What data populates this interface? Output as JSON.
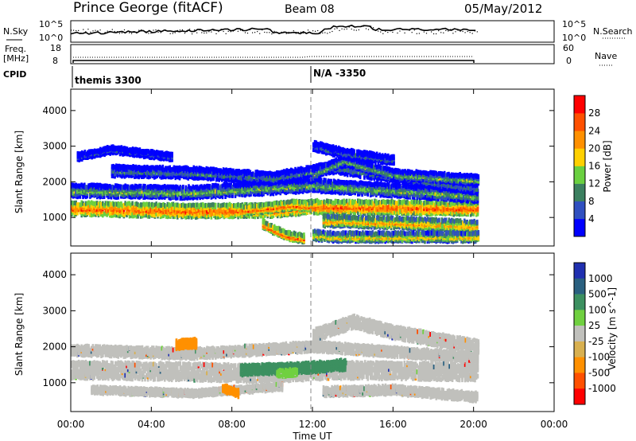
{
  "header": {
    "station": "Prince George (fitACF)",
    "beam": "Beam 08",
    "date": "05/May/2012"
  },
  "summary_panels": {
    "nsky": {
      "left_label": "N.Sky",
      "right_label": "N.Search",
      "ticks": [
        "10^5",
        "10^0"
      ],
      "right_ticks": [
        "10^5",
        "10^0"
      ]
    },
    "freq": {
      "left_label_1": "Freq.",
      "left_label_2": "[MHz]",
      "right_label": "Nave",
      "ticks": [
        "18",
        "8"
      ],
      "right_ticks": [
        "60",
        "0"
      ]
    },
    "cpid": {
      "label": "CPID",
      "segments": [
        "themis 3300",
        "N/A -3350"
      ],
      "change_time": 12.0
    }
  },
  "x_axis": {
    "label": "Time UT",
    "tick_labels": [
      "00:00",
      "04:00",
      "08:00",
      "12:00",
      "16:00",
      "20:00",
      "00:00"
    ]
  },
  "colors": {
    "power_scale": [
      "#0000ff",
      "#3050c0",
      "#3c8060",
      "#6ad040",
      "#ffd000",
      "#ff9000",
      "#ff5000",
      "#ff0000"
    ],
    "velocity_scale": [
      "#2030b0",
      "#2a6080",
      "#3c9060",
      "#70d040",
      "#c0c0bc",
      "#d8b050",
      "#ff9000",
      "#ff5000",
      "#ff0000"
    ],
    "ground_scatter": "#c0c0bc"
  },
  "chart_data": [
    {
      "type": "heatmap",
      "title": "",
      "xlabel": "Time UT",
      "ylabel": "Slant Range [km]",
      "xlim": [
        0,
        24
      ],
      "ylim": [
        200,
        4600
      ],
      "yticks": [
        1000,
        2000,
        3000,
        4000
      ],
      "colorbar": {
        "label": "Power [dB]",
        "ticks": [
          4,
          8,
          12,
          16,
          20,
          24,
          28
        ],
        "range": [
          0,
          32
        ]
      },
      "bands": [
        {
          "t": [
            0,
            6,
            10,
            12,
            20.2
          ],
          "range": [
            1250,
            1180,
            1200,
            1300,
            1250
          ],
          "width": 320,
          "level": 26
        },
        {
          "t": [
            0,
            6,
            12,
            20.2
          ],
          "range": [
            1750,
            1700,
            1900,
            1600
          ],
          "width": 300,
          "level": 14
        },
        {
          "t": [
            2,
            6,
            10,
            13,
            20.2
          ],
          "range": [
            2300,
            2250,
            2100,
            2400,
            1800
          ],
          "width": 260,
          "level": 10
        },
        {
          "t": [
            12,
            13.5,
            16,
            20.2
          ],
          "range": [
            2200,
            2600,
            2200,
            2050
          ],
          "width": 220,
          "level": 14
        },
        {
          "t": [
            12.5,
            16,
            20.2
          ],
          "range": [
            900,
            850,
            750
          ],
          "width": 250,
          "level": 22
        },
        {
          "t": [
            9.5,
            10.6,
            11.6
          ],
          "range": [
            800,
            500,
            400
          ],
          "width": 180,
          "level": 26
        },
        {
          "t": [
            8.5,
            9.5,
            11,
            12
          ],
          "range": [
            1200,
            1250,
            1350,
            1300
          ],
          "width": 200,
          "level": 26
        },
        {
          "t": [
            12,
            13,
            20.2
          ],
          "range": [
            500,
            450,
            450
          ],
          "width": 220,
          "level": 20
        },
        {
          "t": [
            0.3,
            2,
            5
          ],
          "range": [
            2700,
            2900,
            2700
          ],
          "width": 150,
          "level": 6
        },
        {
          "t": [
            12,
            13.5,
            16
          ],
          "range": [
            3000,
            2800,
            2600
          ],
          "width": 200,
          "level": 8
        }
      ]
    },
    {
      "type": "heatmap",
      "title": "",
      "xlabel": "Time UT",
      "ylabel": "Slant Range [km]",
      "xlim": [
        0,
        24
      ],
      "ylim": [
        200,
        4600
      ],
      "yticks": [
        1000,
        2000,
        3000,
        4000
      ],
      "colorbar": {
        "label": "Velocity [m s^-1]",
        "ticks": [
          1000,
          500,
          100,
          25,
          -25,
          -100,
          -500,
          -1000
        ]
      },
      "bands": [
        {
          "t": [
            0,
            6,
            10,
            13,
            20.2
          ],
          "range": [
            1350,
            1300,
            1250,
            1350,
            1300
          ],
          "width": 420,
          "class": "ground"
        },
        {
          "t": [
            0,
            6,
            12,
            20.2
          ],
          "range": [
            1900,
            1800,
            2000,
            1700
          ],
          "width": 230,
          "class": "ground"
        },
        {
          "t": [
            12,
            14,
            16,
            20.2
          ],
          "range": [
            2300,
            2700,
            2400,
            2000
          ],
          "width": 300,
          "class": "ground"
        },
        {
          "t": [
            1,
            6,
            10.5
          ],
          "range": [
            800,
            700,
            900
          ],
          "width": 150,
          "class": "ground"
        },
        {
          "t": [
            12.5,
            16,
            20.2
          ],
          "range": [
            750,
            800,
            600
          ],
          "width": 200,
          "class": "ground"
        },
        {
          "t": [
            8.4,
            11.3,
            13.6
          ],
          "range": [
            1350,
            1400,
            1500
          ],
          "width": 240,
          "class": "velocity",
          "value": 150
        },
        {
          "t": [
            10.2,
            11.2
          ],
          "range": [
            1250,
            1280
          ],
          "width": 160,
          "class": "velocity",
          "value": 60
        },
        {
          "t": [
            5.2,
            6.2
          ],
          "range": [
            2050,
            2100
          ],
          "width": 200,
          "class": "velocity",
          "value": -200
        },
        {
          "t": [
            7.5,
            8.3
          ],
          "range": [
            850,
            700
          ],
          "width": 160,
          "class": "velocity",
          "value": -200
        }
      ]
    }
  ]
}
